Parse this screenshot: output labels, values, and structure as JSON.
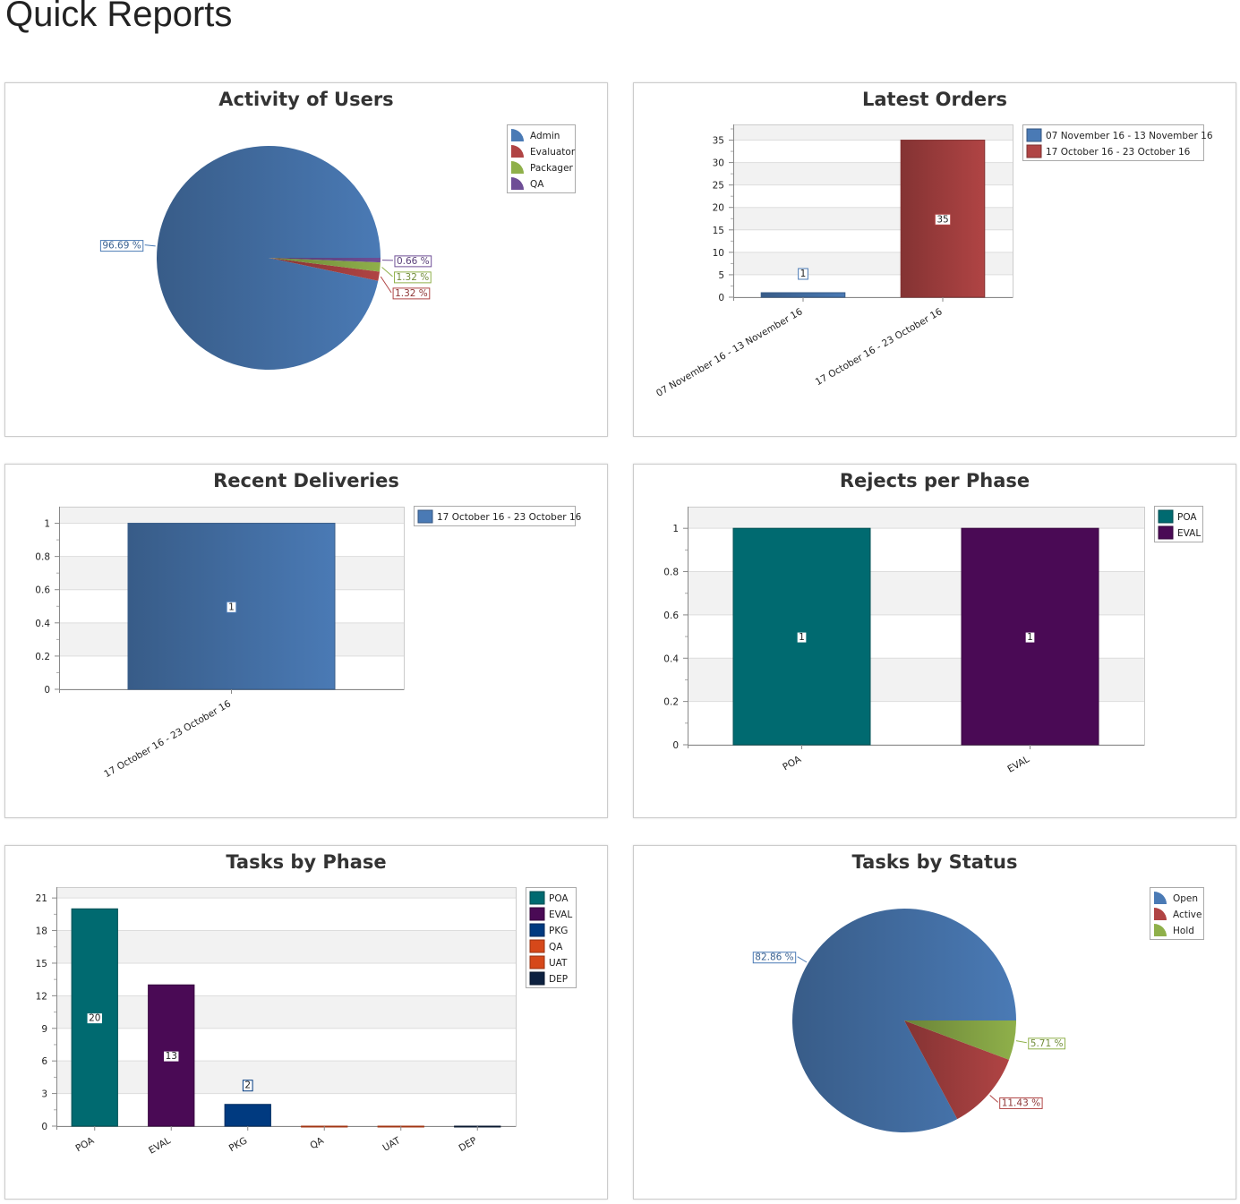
{
  "page_title": "Quick Reports",
  "chart_data": [
    {
      "type": "pie",
      "title": "Activity of Users",
      "labels": [
        "Admin",
        "Evaluator",
        "Packager",
        "QA"
      ],
      "values": [
        96.69,
        1.32,
        1.32,
        0.66
      ],
      "value_labels": [
        "96.69 %",
        "1.32 %",
        "1.32 %",
        "0.66 %"
      ],
      "colors": [
        "#4a7ab5",
        "#b04444",
        "#8fb04a",
        "#6e4e96"
      ],
      "legend": "top-right"
    },
    {
      "type": "bar",
      "title": "Latest Orders",
      "categories": [
        "07 November 16 - 13 November 16",
        "17 October 16 - 23 October 16"
      ],
      "values": [
        1,
        35
      ],
      "colors": [
        "#4a7ab5",
        "#b04444"
      ],
      "legend_entries": [
        "07 November 16 - 13 November 16",
        "17 October 16 - 23 October 16"
      ],
      "ylim": [
        0,
        38.5
      ],
      "ytick_step": 5,
      "ytick_labels": [
        "0",
        "5",
        "10",
        "15",
        "20",
        "25",
        "30",
        "35"
      ],
      "grid": true,
      "legend": "top-right"
    },
    {
      "type": "bar",
      "title": "Recent Deliveries",
      "categories": [
        "17 October 16 - 23 October 16"
      ],
      "values": [
        1
      ],
      "colors": [
        "#4a7ab5"
      ],
      "legend_entries": [
        "17 October 16 - 23 October 16"
      ],
      "ylim": [
        0,
        1.1
      ],
      "ytick_step": 0.2,
      "ytick_labels": [
        "0",
        "0.2",
        "0.4",
        "0.6",
        "0.8",
        "1"
      ],
      "grid": true,
      "legend": "top-right"
    },
    {
      "type": "bar",
      "title": "Rejects per Phase",
      "categories": [
        "POA",
        "EVAL"
      ],
      "values": [
        1,
        1
      ],
      "colors": [
        "#006a70",
        "#4a0a55"
      ],
      "legend_entries": [
        "POA",
        "EVAL"
      ],
      "ylim": [
        0,
        1.1
      ],
      "ytick_step": 0.2,
      "ytick_labels": [
        "0",
        "0.2",
        "0.4",
        "0.6",
        "0.8",
        "1"
      ],
      "grid": true,
      "legend": "top-right"
    },
    {
      "type": "bar",
      "title": "Tasks by Phase",
      "categories": [
        "POA",
        "EVAL",
        "PKG",
        "QA",
        "UAT",
        "DEP"
      ],
      "values": [
        20,
        13,
        2,
        0,
        0,
        0
      ],
      "colors": [
        "#006a70",
        "#4a0a55",
        "#003a80",
        "#d6481a",
        "#d6481a",
        "#0d2140"
      ],
      "legend_entries": [
        "POA",
        "EVAL",
        "PKG",
        "QA",
        "UAT",
        "DEP"
      ],
      "ylim": [
        0,
        22
      ],
      "ytick_step": 3,
      "ytick_labels": [
        "0",
        "3",
        "6",
        "9",
        "12",
        "15",
        "18",
        "21"
      ],
      "grid": true,
      "legend": "top-right"
    },
    {
      "type": "pie",
      "title": "Tasks by Status",
      "labels": [
        "Open",
        "Active",
        "Hold"
      ],
      "values": [
        82.86,
        11.43,
        5.71
      ],
      "value_labels": [
        "82.86 %",
        "11.43 %",
        "5.71 %"
      ],
      "colors": [
        "#4a7ab5",
        "#b04444",
        "#8fb04a"
      ],
      "legend": "top-right"
    }
  ]
}
